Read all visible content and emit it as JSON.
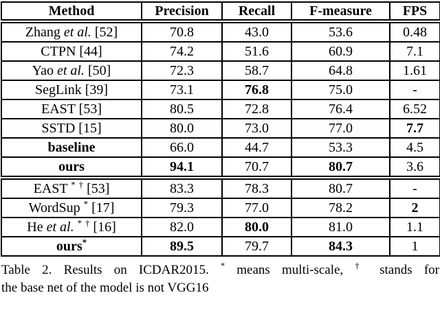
{
  "colors": {
    "text": "#000000",
    "background": "#ffffff",
    "border": "#000000"
  },
  "table": {
    "columns": [
      "Method",
      "Precision",
      "Recall",
      "F-measure",
      "FPS"
    ],
    "sections": [
      {
        "rows": [
          {
            "method": [
              {
                "t": "Zhang ",
                "s": "n"
              },
              {
                "t": "et al.",
                "s": "i"
              },
              {
                "t": " [52]",
                "s": "n"
              }
            ],
            "method_bold": false,
            "values": [
              {
                "v": "70.8",
                "b": false
              },
              {
                "v": "43.0",
                "b": false
              },
              {
                "v": "53.6",
                "b": false
              },
              {
                "v": "0.48",
                "b": false
              }
            ]
          },
          {
            "method": [
              {
                "t": "CTPN [44]",
                "s": "n"
              }
            ],
            "method_bold": false,
            "values": [
              {
                "v": "74.2",
                "b": false
              },
              {
                "v": "51.6",
                "b": false
              },
              {
                "v": "60.9",
                "b": false
              },
              {
                "v": "7.1",
                "b": false
              }
            ]
          },
          {
            "method": [
              {
                "t": "Yao ",
                "s": "n"
              },
              {
                "t": "et al.",
                "s": "i"
              },
              {
                "t": " [50]",
                "s": "n"
              }
            ],
            "method_bold": false,
            "values": [
              {
                "v": "72.3",
                "b": false
              },
              {
                "v": "58.7",
                "b": false
              },
              {
                "v": "64.8",
                "b": false
              },
              {
                "v": "1.61",
                "b": false
              }
            ]
          },
          {
            "method": [
              {
                "t": "SegLink [39]",
                "s": "n"
              }
            ],
            "method_bold": false,
            "values": [
              {
                "v": "73.1",
                "b": false
              },
              {
                "v": "76.8",
                "b": true
              },
              {
                "v": "75.0",
                "b": false
              },
              {
                "v": "-",
                "b": false
              }
            ]
          },
          {
            "method": [
              {
                "t": "EAST [53]",
                "s": "n"
              }
            ],
            "method_bold": false,
            "values": [
              {
                "v": "80.5",
                "b": false
              },
              {
                "v": "72.8",
                "b": false
              },
              {
                "v": "76.4",
                "b": false
              },
              {
                "v": "6.52",
                "b": false
              }
            ]
          },
          {
            "method": [
              {
                "t": "SSTD [15]",
                "s": "n"
              }
            ],
            "method_bold": false,
            "values": [
              {
                "v": "80.0",
                "b": false
              },
              {
                "v": "73.0",
                "b": false
              },
              {
                "v": "77.0",
                "b": false
              },
              {
                "v": "7.7",
                "b": true
              }
            ]
          },
          {
            "method": [
              {
                "t": "baseline",
                "s": "b"
              }
            ],
            "method_bold": true,
            "values": [
              {
                "v": "66.0",
                "b": false
              },
              {
                "v": "44.7",
                "b": false
              },
              {
                "v": "53.3",
                "b": false
              },
              {
                "v": "4.5",
                "b": false
              }
            ]
          },
          {
            "method": [
              {
                "t": "ours",
                "s": "b"
              }
            ],
            "method_bold": true,
            "values": [
              {
                "v": "94.1",
                "b": true
              },
              {
                "v": "70.7",
                "b": false
              },
              {
                "v": "80.7",
                "b": true
              },
              {
                "v": "3.6",
                "b": false
              }
            ]
          }
        ]
      },
      {
        "rows": [
          {
            "method": [
              {
                "t": "EAST ",
                "s": "n"
              },
              {
                "t": "*",
                "s": "sup"
              },
              {
                "t": " ",
                "s": "n"
              },
              {
                "t": "†",
                "s": "sup"
              },
              {
                "t": " [53]",
                "s": "n"
              }
            ],
            "method_bold": false,
            "values": [
              {
                "v": "83.3",
                "b": false
              },
              {
                "v": "78.3",
                "b": false
              },
              {
                "v": "80.7",
                "b": false
              },
              {
                "v": "-",
                "b": false
              }
            ]
          },
          {
            "method": [
              {
                "t": "WordSup ",
                "s": "n"
              },
              {
                "t": "*",
                "s": "sup"
              },
              {
                "t": " [17]",
                "s": "n"
              }
            ],
            "method_bold": false,
            "values": [
              {
                "v": "79.3",
                "b": false
              },
              {
                "v": "77.0",
                "b": false
              },
              {
                "v": "78.2",
                "b": false
              },
              {
                "v": "2",
                "b": true
              }
            ]
          },
          {
            "method": [
              {
                "t": "He ",
                "s": "n"
              },
              {
                "t": "et al.",
                "s": "i"
              },
              {
                "t": " ",
                "s": "n"
              },
              {
                "t": "*",
                "s": "sup"
              },
              {
                "t": " ",
                "s": "n"
              },
              {
                "t": "†",
                "s": "sup"
              },
              {
                "t": " [16]",
                "s": "n"
              }
            ],
            "method_bold": false,
            "values": [
              {
                "v": "82.0",
                "b": false
              },
              {
                "v": "80.0",
                "b": true
              },
              {
                "v": "81.0",
                "b": false
              },
              {
                "v": "1.1",
                "b": false
              }
            ]
          },
          {
            "method": [
              {
                "t": "ours",
                "s": "b"
              },
              {
                "t": "*",
                "s": "sup"
              }
            ],
            "method_bold": true,
            "values": [
              {
                "v": "89.5",
                "b": true
              },
              {
                "v": "79.7",
                "b": false
              },
              {
                "v": "84.3",
                "b": true
              },
              {
                "v": "1",
                "b": false
              }
            ]
          }
        ]
      }
    ]
  },
  "caption": {
    "line1": [
      {
        "t": "Table 2. Results on ICDAR2015. ",
        "s": "n"
      },
      {
        "t": "*",
        "s": "sup"
      },
      {
        "t": " means multi-scale, ",
        "s": "n"
      },
      {
        "t": "†",
        "s": "sup"
      },
      {
        "t": " stands for",
        "s": "n"
      }
    ],
    "line2": [
      {
        "t": "the base net of the model is not VGG16",
        "s": "n"
      }
    ]
  }
}
